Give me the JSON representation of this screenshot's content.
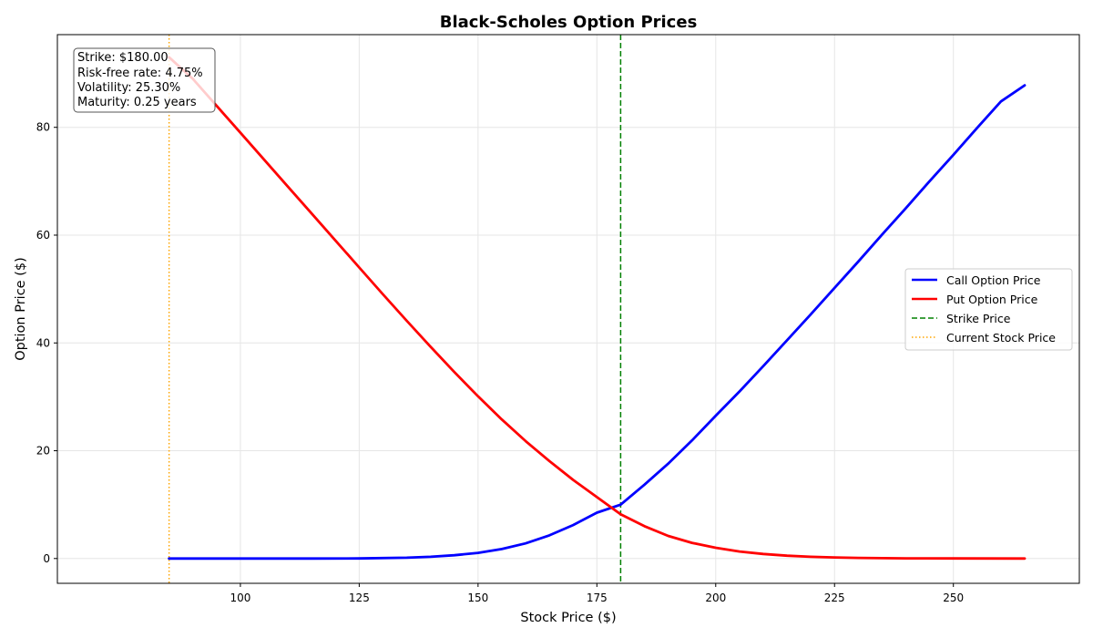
{
  "chart_data": {
    "type": "line",
    "title": "Black-Scholes Option Prices",
    "xlabel": "Stock Price ($)",
    "ylabel": "Option Price ($)",
    "xlim": [
      61.5,
      276.5
    ],
    "ylim": [
      -4.6,
      97.2
    ],
    "xticks": [
      100,
      125,
      150,
      175,
      200,
      225,
      250
    ],
    "yticks": [
      0,
      20,
      40,
      60,
      80
    ],
    "grid": true,
    "legend_position": "center-right",
    "series": [
      {
        "name": "Call Option Price",
        "color": "#0000ff",
        "style": "solid",
        "x": [
          85,
          95,
          105,
          115,
          125,
          135,
          140,
          145,
          150,
          155,
          160,
          165,
          170,
          175,
          180,
          185,
          190,
          195,
          200,
          205,
          210,
          215,
          220,
          225,
          230,
          235,
          240,
          245,
          250,
          255,
          260,
          265
        ],
        "y": [
          0.0,
          0.0,
          0.0,
          0.0,
          0.02,
          0.15,
          0.32,
          0.6,
          1.05,
          1.75,
          2.8,
          4.3,
          6.2,
          8.5,
          10.0,
          13.7,
          17.6,
          21.9,
          26.5,
          31.0,
          35.7,
          40.5,
          45.3,
          50.2,
          55.1,
          60.1,
          65.0,
          70.0,
          74.9,
          79.9,
          84.8,
          87.8
        ]
      },
      {
        "name": "Put Option Price",
        "color": "#ff0000",
        "style": "solid",
        "x": [
          85,
          90,
          95,
          100,
          105,
          110,
          115,
          120,
          125,
          130,
          135,
          140,
          145,
          150,
          155,
          160,
          165,
          170,
          175,
          180,
          185,
          190,
          195,
          200,
          205,
          210,
          215,
          220,
          225,
          230,
          240,
          250,
          265
        ],
        "y": [
          93.0,
          89.0,
          84.0,
          79.0,
          74.0,
          69.0,
          64.0,
          59.0,
          54.0,
          49.0,
          44.1,
          39.3,
          34.6,
          30.1,
          25.8,
          21.8,
          18.1,
          14.6,
          11.4,
          8.2,
          6.0,
          4.2,
          2.9,
          2.0,
          1.3,
          0.85,
          0.52,
          0.32,
          0.2,
          0.12,
          0.04,
          0.01,
          0.0
        ]
      }
    ],
    "reference_lines": [
      {
        "name": "Strike Price",
        "orientation": "vertical",
        "x": 180,
        "color": "#008000",
        "style": "dashed"
      },
      {
        "name": "Current Stock Price",
        "orientation": "vertical",
        "x": 85,
        "color": "#ffa500",
        "style": "dotted"
      }
    ],
    "info_box": [
      "Strike: $180.00",
      "Risk-free rate: 4.75%",
      "Volatility: 25.30%",
      "Maturity: 0.25 years"
    ]
  }
}
